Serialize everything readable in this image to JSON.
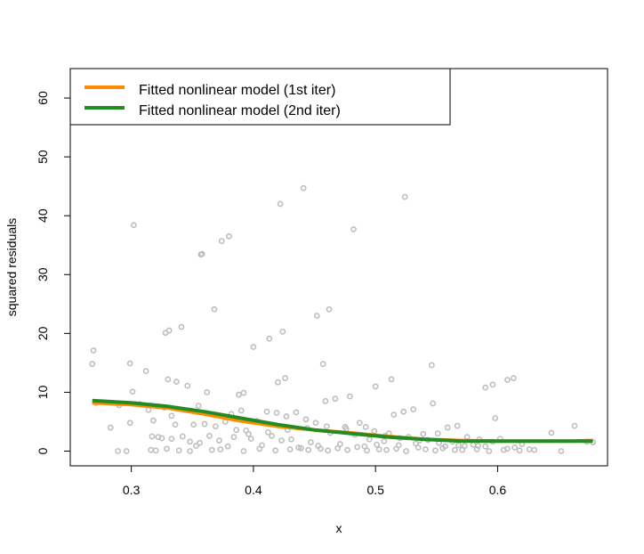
{
  "chart_data": {
    "type": "scatter",
    "xlabel": "x",
    "ylabel": "squared residuals",
    "xlim": [
      0.25,
      0.69
    ],
    "ylim": [
      -2.5,
      65
    ],
    "xticks": [
      "0.3",
      "0.4",
      "0.5",
      "0.6"
    ],
    "yticks": [
      "0",
      "10",
      "20",
      "30",
      "40",
      "50",
      "60"
    ],
    "legend_position": "top-left",
    "legend": [
      {
        "label": "Fitted nonlinear model (1st iter)",
        "color": "#FF8C00"
      },
      {
        "label": "Fitted nonlinear model (2nd iter)",
        "color": "#228B22"
      }
    ],
    "point_color": "#BEBEBE",
    "points": [
      [
        0.268,
        14.8
      ],
      [
        0.269,
        17.1
      ],
      [
        0.289,
        0.0
      ],
      [
        0.296,
        0.0
      ],
      [
        0.299,
        14.9
      ],
      [
        0.301,
        10.1
      ],
      [
        0.302,
        38.4
      ],
      [
        0.312,
        13.6
      ],
      [
        0.317,
        2.5
      ],
      [
        0.32,
        0.1
      ],
      [
        0.325,
        2.2
      ],
      [
        0.328,
        20.1
      ],
      [
        0.33,
        12.2
      ],
      [
        0.331,
        20.5
      ],
      [
        0.333,
        6.0
      ],
      [
        0.337,
        11.8
      ],
      [
        0.341,
        21.1
      ],
      [
        0.346,
        11.1
      ],
      [
        0.348,
        0.0
      ],
      [
        0.357,
        33.4
      ],
      [
        0.358,
        33.5
      ],
      [
        0.362,
        10.0
      ],
      [
        0.368,
        24.1
      ],
      [
        0.374,
        35.7
      ],
      [
        0.38,
        36.5
      ],
      [
        0.388,
        9.6
      ],
      [
        0.392,
        9.9
      ],
      [
        0.4,
        17.7
      ],
      [
        0.413,
        19.1
      ],
      [
        0.42,
        11.7
      ],
      [
        0.422,
        42.0
      ],
      [
        0.424,
        20.3
      ],
      [
        0.426,
        12.4
      ],
      [
        0.441,
        44.7
      ],
      [
        0.452,
        23.0
      ],
      [
        0.457,
        14.8
      ],
      [
        0.462,
        24.1
      ],
      [
        0.482,
        37.7
      ],
      [
        0.5,
        11.0
      ],
      [
        0.513,
        12.2
      ],
      [
        0.524,
        43.2
      ],
      [
        0.546,
        14.6
      ],
      [
        0.59,
        10.8
      ],
      [
        0.596,
        11.3
      ],
      [
        0.608,
        12.1
      ],
      [
        0.613,
        12.4
      ],
      [
        0.598,
        5.6
      ],
      [
        0.644,
        3.1
      ],
      [
        0.663,
        4.3
      ],
      [
        0.271,
        8.2
      ],
      [
        0.283,
        4.0
      ],
      [
        0.29,
        7.8
      ],
      [
        0.299,
        4.8
      ],
      [
        0.307,
        8.0
      ],
      [
        0.314,
        7.0
      ],
      [
        0.318,
        5.2
      ],
      [
        0.322,
        2.4
      ],
      [
        0.327,
        7.4
      ],
      [
        0.333,
        2.1
      ],
      [
        0.336,
        4.5
      ],
      [
        0.342,
        2.5
      ],
      [
        0.348,
        1.6
      ],
      [
        0.351,
        4.5
      ],
      [
        0.355,
        7.7
      ],
      [
        0.36,
        4.6
      ],
      [
        0.364,
        2.6
      ],
      [
        0.369,
        4.2
      ],
      [
        0.373,
        0.3
      ],
      [
        0.377,
        5.0
      ],
      [
        0.382,
        6.3
      ],
      [
        0.386,
        3.6
      ],
      [
        0.39,
        6.9
      ],
      [
        0.394,
        3.5
      ],
      [
        0.398,
        2.1
      ],
      [
        0.403,
        5.1
      ],
      [
        0.407,
        1.0
      ],
      [
        0.411,
        6.7
      ],
      [
        0.415,
        2.6
      ],
      [
        0.419,
        6.5
      ],
      [
        0.423,
        1.8
      ],
      [
        0.427,
        5.9
      ],
      [
        0.431,
        2.0
      ],
      [
        0.435,
        6.6
      ],
      [
        0.439,
        0.5
      ],
      [
        0.443,
        5.4
      ],
      [
        0.447,
        1.5
      ],
      [
        0.451,
        4.8
      ],
      [
        0.455,
        0.4
      ],
      [
        0.459,
        8.5
      ],
      [
        0.463,
        3.1
      ],
      [
        0.467,
        8.9
      ],
      [
        0.471,
        1.2
      ],
      [
        0.475,
        4.1
      ],
      [
        0.479,
        9.3
      ],
      [
        0.483,
        2.8
      ],
      [
        0.487,
        4.8
      ],
      [
        0.491,
        0.8
      ],
      [
        0.495,
        2.0
      ],
      [
        0.499,
        3.4
      ],
      [
        0.503,
        0.3
      ],
      [
        0.507,
        1.7
      ],
      [
        0.511,
        3.0
      ],
      [
        0.515,
        6.2
      ],
      [
        0.519,
        1.0
      ],
      [
        0.523,
        6.7
      ],
      [
        0.527,
        2.4
      ],
      [
        0.531,
        7.1
      ],
      [
        0.535,
        0.6
      ],
      [
        0.539,
        2.9
      ],
      [
        0.543,
        1.9
      ],
      [
        0.547,
        8.1
      ],
      [
        0.551,
        3.0
      ],
      [
        0.555,
        0.5
      ],
      [
        0.559,
        4.0
      ],
      [
        0.563,
        1.6
      ],
      [
        0.567,
        4.3
      ],
      [
        0.571,
        0.2
      ],
      [
        0.575,
        2.4
      ],
      [
        0.58,
        1.1
      ],
      [
        0.585,
        2.0
      ],
      [
        0.59,
        0.8
      ],
      [
        0.596,
        1.6
      ],
      [
        0.602,
        2.1
      ],
      [
        0.608,
        0.4
      ],
      [
        0.614,
        0.6
      ],
      [
        0.62,
        1.2
      ],
      [
        0.63,
        0.2
      ],
      [
        0.652,
        0.0
      ],
      [
        0.673,
        1.6
      ],
      [
        0.678,
        1.5
      ],
      [
        0.316,
        0.2
      ],
      [
        0.329,
        0.4
      ],
      [
        0.339,
        0.1
      ],
      [
        0.353,
        0.9
      ],
      [
        0.366,
        0.2
      ],
      [
        0.379,
        0.8
      ],
      [
        0.392,
        0.0
      ],
      [
        0.405,
        0.4
      ],
      [
        0.418,
        0.1
      ],
      [
        0.43,
        0.3
      ],
      [
        0.437,
        0.6
      ],
      [
        0.445,
        0.2
      ],
      [
        0.453,
        0.9
      ],
      [
        0.461,
        0.1
      ],
      [
        0.469,
        0.5
      ],
      [
        0.477,
        0.2
      ],
      [
        0.485,
        0.7
      ],
      [
        0.493,
        0.1
      ],
      [
        0.501,
        1.1
      ],
      [
        0.509,
        0.2
      ],
      [
        0.517,
        0.4
      ],
      [
        0.525,
        0.0
      ],
      [
        0.533,
        1.3
      ],
      [
        0.541,
        0.3
      ],
      [
        0.549,
        0.1
      ],
      [
        0.557,
        0.8
      ],
      [
        0.565,
        0.2
      ],
      [
        0.573,
        0.9
      ],
      [
        0.583,
        0.3
      ],
      [
        0.593,
        0.0
      ],
      [
        0.605,
        0.2
      ],
      [
        0.618,
        0.1
      ],
      [
        0.626,
        0.3
      ],
      [
        0.356,
        1.4
      ],
      [
        0.372,
        1.8
      ],
      [
        0.384,
        2.4
      ],
      [
        0.396,
        2.9
      ],
      [
        0.412,
        3.2
      ],
      [
        0.428,
        3.6
      ],
      [
        0.444,
        3.9
      ],
      [
        0.46,
        4.2
      ],
      [
        0.476,
        3.8
      ],
      [
        0.492,
        4.1
      ],
      [
        0.508,
        2.6
      ],
      [
        0.52,
        2.2
      ],
      [
        0.536,
        1.8
      ],
      [
        0.552,
        1.4
      ],
      [
        0.568,
        1.0
      ],
      [
        0.584,
        0.9
      ]
    ],
    "series": [
      {
        "name": "Fitted nonlinear model (1st iter)",
        "color": "#FF8C00",
        "x": [
          0.268,
          0.3,
          0.33,
          0.36,
          0.39,
          0.42,
          0.45,
          0.48,
          0.51,
          0.54,
          0.57,
          0.6,
          0.63,
          0.66,
          0.678
        ],
        "y": [
          8.2,
          7.9,
          7.3,
          6.3,
          5.1,
          4.2,
          3.6,
          3.1,
          2.5,
          2.0,
          1.8,
          1.7,
          1.7,
          1.7,
          1.8
        ]
      },
      {
        "name": "Fitted nonlinear model (2nd iter)",
        "color": "#228B22",
        "x": [
          0.268,
          0.3,
          0.33,
          0.36,
          0.39,
          0.42,
          0.45,
          0.48,
          0.51,
          0.54,
          0.57,
          0.6,
          0.63,
          0.66,
          0.678
        ],
        "y": [
          8.6,
          8.2,
          7.6,
          6.7,
          5.6,
          4.5,
          3.6,
          3.0,
          2.4,
          2.0,
          1.7,
          1.7,
          1.7,
          1.7,
          1.7
        ]
      }
    ]
  }
}
